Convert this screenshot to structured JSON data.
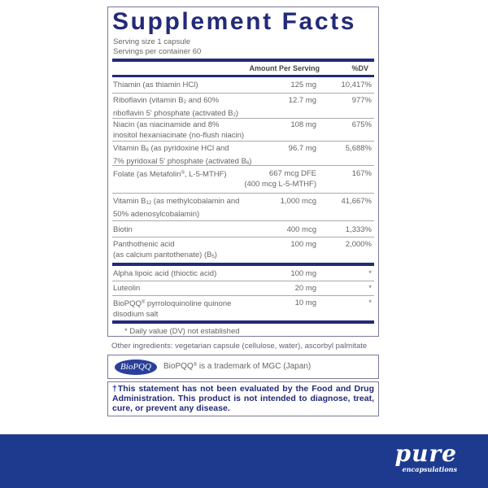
{
  "title": "Supplement Facts",
  "serving_size": "Serving size  1 capsule",
  "servings_per_container": "Servings per container  60",
  "header": {
    "amount": "Amount Per Serving",
    "dv": "%DV"
  },
  "rows": [
    {
      "name": "Thiamin (as thiamin HCl)",
      "amount": "125 mg",
      "dv": "10,417%"
    },
    {
      "name1": "Riboflavin (vitamin B",
      "s1": "2",
      "name1b": " and 60%",
      "name2": "riboflavin 5' phosphate (activated B",
      "s2": "2",
      "name2b": ")",
      "amount": "12.7 mg",
      "dv": "977%"
    },
    {
      "name1": "Niacin (as niacinamide and 8%",
      "name2": "inositol hexaniacinate (no-flush niacin)",
      "amount": "108 mg",
      "dv": "675%"
    },
    {
      "name1": "Vitamin B",
      "s1": "6",
      "name1b": " (as pyridoxine HCl and",
      "name2": "7% pyridoxal 5' phosphate (activated B",
      "s2": "6",
      "name2b": ")",
      "amount": "96.7 mg",
      "dv": "5,688%"
    },
    {
      "name1": "Folate (as Metafolin",
      "sup": "®",
      "name1b": ", L-5-MTHF)",
      "amount": "667 mcg DFE",
      "amount2": "(400 mcg L-5-MTHF)",
      "dv": "167%"
    },
    {
      "name1": "Vitamin B",
      "s1": "12",
      "name1b": " (as methylcobalamin and",
      "name2": "50% adenosylcobalamin)",
      "amount": "1,000 mcg",
      "dv": "41,667%"
    },
    {
      "name": "Biotin",
      "amount": "400 mcg",
      "dv": "1,333%"
    },
    {
      "name1": "Panthothenic acid",
      "name2": "(as calcium pantothenate) (B",
      "s2": "5",
      "name2b": ")",
      "amount": "100 mg",
      "dv": "2,000%"
    },
    {
      "name": "Alpha lipoic acid (thioctic acid)",
      "amount": "100 mg",
      "dv": "*"
    },
    {
      "name": "Luteolin",
      "amount": "20 mg",
      "dv": "*"
    },
    {
      "name1": "BioPQQ",
      "sup": "®",
      "name1b": " pyrroloquinoline quinone",
      "name2": "disodium salt",
      "amount": "10 mg",
      "dv": "*"
    }
  ],
  "footnote": "* Daily value (DV) not established",
  "other_ingredients": "Other ingredients: vegetarian capsule (cellulose, water), ascorbyl palmitate",
  "trademark": {
    "logo": "BioPQQ",
    "text1": "BioPQQ",
    "sup": "®",
    "text2": " is a trademark of MGC (Japan)"
  },
  "statement": "†This statement has not been evaluated by the Food and Drug Administration. This product is not intended to diagnose, treat, cure, or prevent any disease.",
  "brand": {
    "name": "pure",
    "sub": "encapsulations"
  },
  "colors": {
    "navy": "#232a78",
    "footer": "#1d3a8f"
  }
}
